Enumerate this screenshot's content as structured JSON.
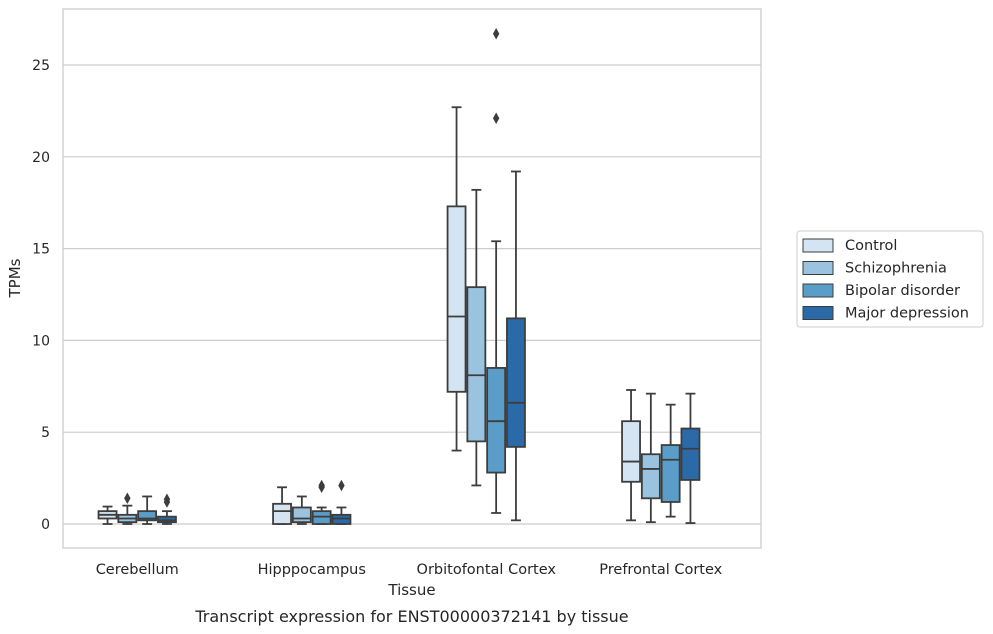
{
  "chart_data": {
    "type": "box",
    "title": "",
    "caption": "Transcript expression for ENST00000372141 by tissue",
    "xlabel": "Tissue",
    "ylabel": "TPMs",
    "ylim": [
      -1.3,
      28.3
    ],
    "yticks": [
      0,
      5,
      10,
      15,
      20,
      25
    ],
    "grid": "horizontal",
    "legend_position": "right",
    "categories": [
      "Cerebellum",
      "Hipppocampus",
      "Orbitofontal Cortex",
      "Prefrontal Cortex"
    ],
    "series": [
      {
        "name": "Control",
        "color": "#d4e4f2",
        "boxes": [
          {
            "whisker_low": 0.0,
            "q1": 0.3,
            "median": 0.5,
            "q3": 0.7,
            "whisker_high": 0.95,
            "outliers": []
          },
          {
            "whisker_low": 0.0,
            "q1": 0.0,
            "median": 0.7,
            "q3": 1.1,
            "whisker_high": 2.0,
            "outliers": []
          },
          {
            "whisker_low": 4.0,
            "q1": 7.2,
            "median": 11.3,
            "q3": 17.3,
            "whisker_high": 22.7,
            "outliers": []
          },
          {
            "whisker_low": 0.2,
            "q1": 2.3,
            "median": 3.4,
            "q3": 5.6,
            "whisker_high": 7.3,
            "outliers": []
          }
        ]
      },
      {
        "name": "Schizophrenia",
        "color": "#99c3df",
        "boxes": [
          {
            "whisker_low": 0.0,
            "q1": 0.1,
            "median": 0.3,
            "q3": 0.5,
            "whisker_high": 1.0,
            "outliers": [
              1.4
            ]
          },
          {
            "whisker_low": 0.0,
            "q1": 0.1,
            "median": 0.3,
            "q3": 0.9,
            "whisker_high": 1.5,
            "outliers": []
          },
          {
            "whisker_low": 2.1,
            "q1": 4.5,
            "median": 8.1,
            "q3": 12.9,
            "whisker_high": 18.2,
            "outliers": []
          },
          {
            "whisker_low": 0.1,
            "q1": 1.4,
            "median": 3.0,
            "q3": 3.8,
            "whisker_high": 7.1,
            "outliers": []
          }
        ]
      },
      {
        "name": "Bipolar disorder",
        "color": "#5b9dc9",
        "boxes": [
          {
            "whisker_low": 0.0,
            "q1": 0.2,
            "median": 0.3,
            "q3": 0.7,
            "whisker_high": 1.5,
            "outliers": []
          },
          {
            "whisker_low": 0.0,
            "q1": 0.0,
            "median": 0.4,
            "q3": 0.7,
            "whisker_high": 0.9,
            "outliers": [
              2.0,
              2.1
            ]
          },
          {
            "whisker_low": 0.6,
            "q1": 2.8,
            "median": 5.6,
            "q3": 8.5,
            "whisker_high": 15.4,
            "outliers": [
              22.1,
              26.7
            ]
          },
          {
            "whisker_low": 0.4,
            "q1": 1.2,
            "median": 3.5,
            "q3": 4.3,
            "whisker_high": 6.5,
            "outliers": []
          }
        ]
      },
      {
        "name": "Major depression",
        "color": "#2b6aa8",
        "boxes": [
          {
            "whisker_low": 0.0,
            "q1": 0.1,
            "median": 0.2,
            "q3": 0.4,
            "whisker_high": 0.7,
            "outliers": [
              1.2,
              1.35
            ]
          },
          {
            "whisker_low": 0.0,
            "q1": 0.0,
            "median": 0.3,
            "q3": 0.5,
            "whisker_high": 0.9,
            "outliers": [
              2.1
            ]
          },
          {
            "whisker_low": 0.2,
            "q1": 4.2,
            "median": 6.6,
            "q3": 11.2,
            "whisker_high": 19.2,
            "outliers": []
          },
          {
            "whisker_low": 0.05,
            "q1": 2.4,
            "median": 4.1,
            "q3": 5.2,
            "whisker_high": 7.1,
            "outliers": []
          }
        ]
      }
    ]
  }
}
